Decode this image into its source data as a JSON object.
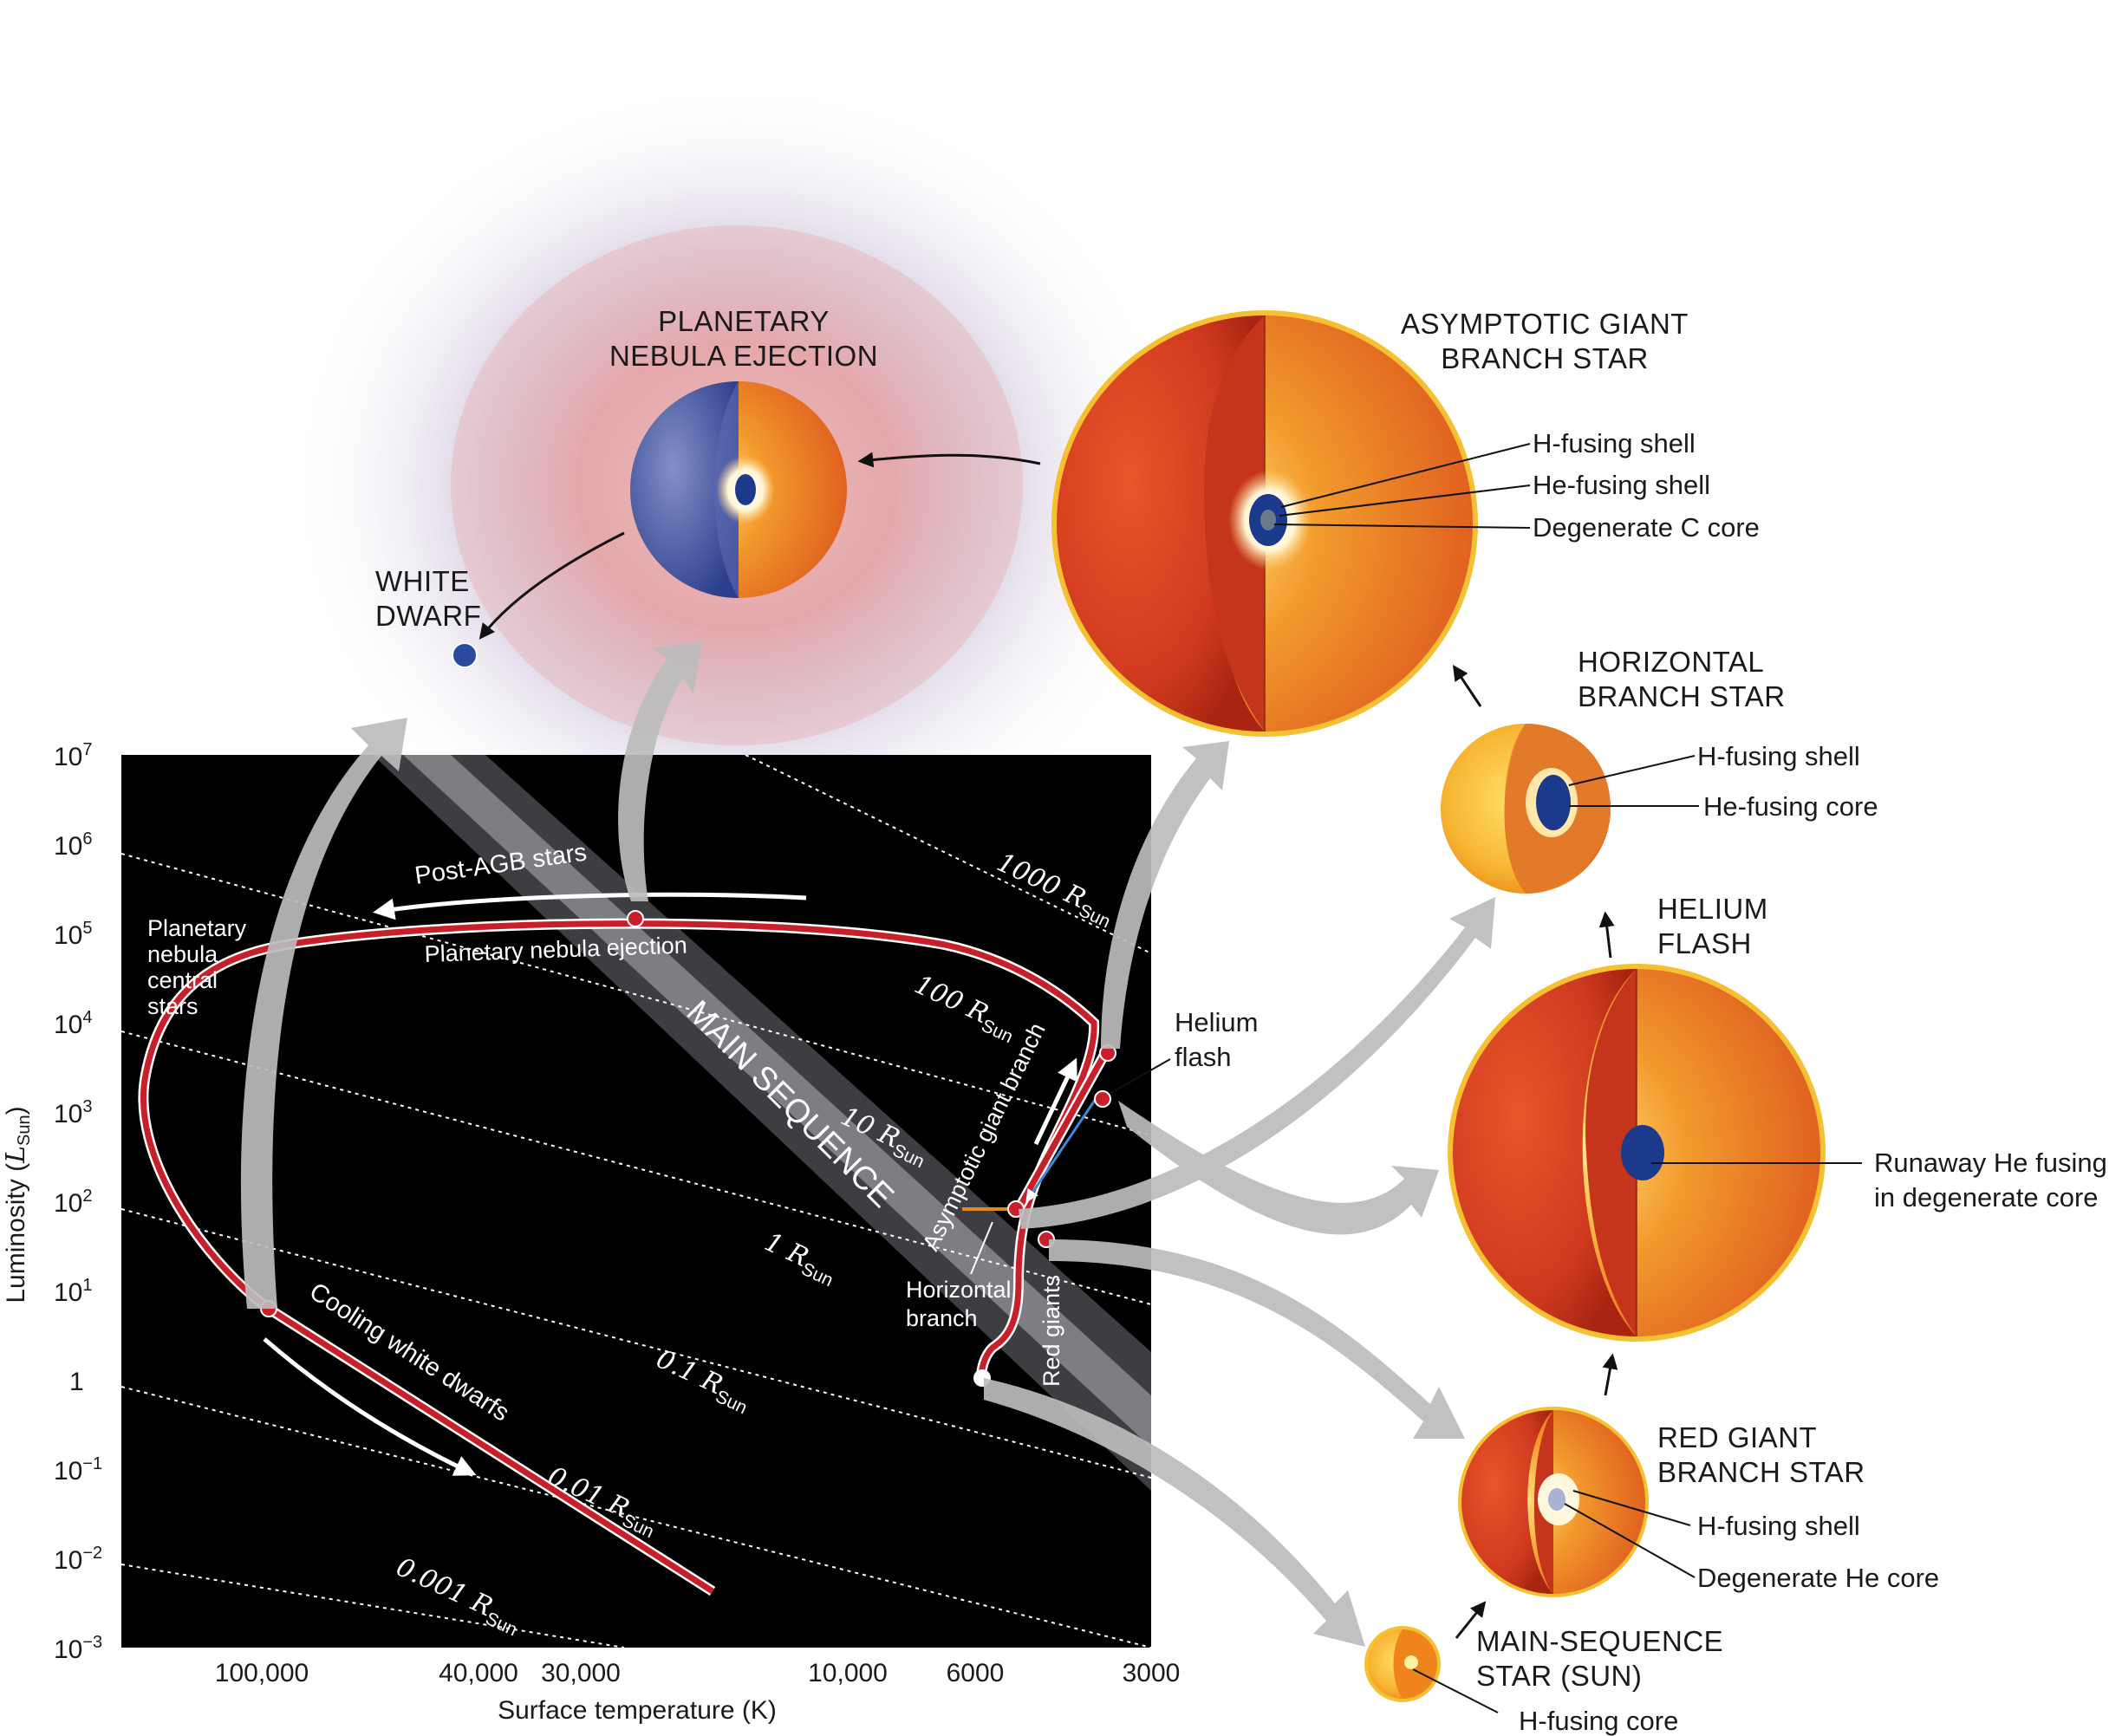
{
  "diagram": {
    "stages": {
      "planetary_nebula": [
        "PLANETARY",
        "NEBULA EJECTION"
      ],
      "white_dwarf": [
        "WHITE",
        "DWARF"
      ],
      "agb": [
        "ASYMPTOTIC GIANT",
        "BRANCH STAR"
      ],
      "horizontal_branch": [
        "HORIZONTAL",
        "BRANCH STAR"
      ],
      "helium_flash": [
        "HELIUM",
        "FLASH"
      ],
      "red_giant": [
        "RED GIANT",
        "BRANCH STAR"
      ],
      "main_sequence": [
        "MAIN-SEQUENCE",
        "STAR (SUN)"
      ]
    },
    "callouts": {
      "agb_h_shell": "H-fusing shell",
      "agb_he_shell": "He-fusing shell",
      "agb_core": "Degenerate C core",
      "hb_h_shell": "H-fusing shell",
      "hb_he_core": "He-fusing core",
      "flash_core": [
        "Runaway He fusing",
        "in degenerate core"
      ],
      "rg_h_shell": "H-fusing shell",
      "rg_core": "Degenerate He core",
      "ms_core": "H-fusing core"
    },
    "plot": {
      "ylabel": "Luminosity",
      "ylabel_unit": "L",
      "ylabel_unit_sub": "Sun",
      "xlabel": "Surface temperature (K)",
      "y_ticks": [
        {
          "base": "10",
          "exp": "7"
        },
        {
          "base": "10",
          "exp": "6"
        },
        {
          "base": "10",
          "exp": "5"
        },
        {
          "base": "10",
          "exp": "4"
        },
        {
          "base": "10",
          "exp": "3"
        },
        {
          "base": "10",
          "exp": "2"
        },
        {
          "base": "10",
          "exp": "1"
        },
        {
          "base": "1",
          "exp": ""
        },
        {
          "base": "10",
          "exp": "−1"
        },
        {
          "base": "10",
          "exp": "−2"
        },
        {
          "base": "10",
          "exp": "−3"
        }
      ],
      "x_ticks": [
        "100,000",
        "40,000",
        "30,000",
        "10,000",
        "6000",
        "3000"
      ],
      "radius_lines": [
        {
          "value": "1000",
          "unit": "R",
          "sub": "Sun"
        },
        {
          "value": "100",
          "unit": "R",
          "sub": "Sun"
        },
        {
          "value": "10",
          "unit": "R",
          "sub": "Sun"
        },
        {
          "value": "1",
          "unit": "R",
          "sub": "Sun"
        },
        {
          "value": "0.1",
          "unit": "R",
          "sub": "Sun"
        },
        {
          "value": "0.01",
          "unit": "R",
          "sub": "Sun"
        },
        {
          "value": "0.001",
          "unit": "R",
          "sub": "Sun"
        }
      ],
      "labels": {
        "main_sequence": "MAIN SEQUENCE",
        "post_agb": "Post-AGB stars",
        "pn_ejection": "Planetary nebula ejection",
        "pn_central": [
          "Planetary",
          "nebula",
          "central",
          "stars"
        ],
        "cooling_wd": "Cooling white dwarfs",
        "agb_branch": "Asymptotic giant branch",
        "red_giants": "Red giants",
        "helium_flash": [
          "Helium",
          "flash"
        ],
        "horizontal_branch": [
          "Horizontal",
          "branch"
        ]
      }
    },
    "colors": {
      "track": "#c8202a",
      "plot_bg": "#000000",
      "star_outer": "#d43a1f",
      "star_inner": "#f07a1a",
      "core_blue": "#1c3a8c"
    }
  }
}
